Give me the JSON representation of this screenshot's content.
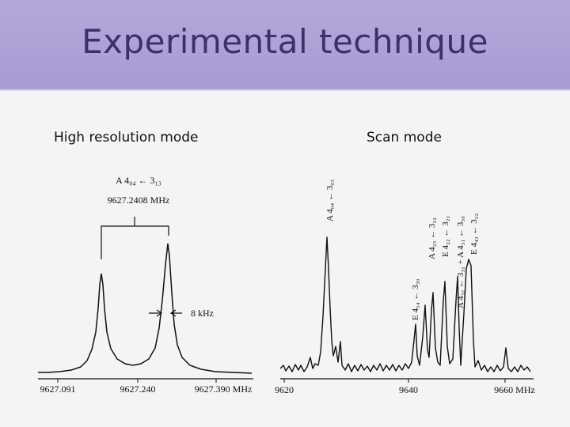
{
  "slide": {
    "title": "Experimental technique",
    "left_heading": "High resolution mode",
    "right_heading": "Scan mode"
  },
  "high_res_panel": {
    "transition_label": "A 4₀₄ ← 3₁₃",
    "frequency_label": "9627.2408 MHz",
    "splitting_label": "8 kHz",
    "x_ticks": [
      "9627.091",
      "9627.240",
      "9627.390 MHz"
    ]
  },
  "scan_panel": {
    "peak_labels": [
      "A 4₀₄ ← 3₀₃",
      "E 4₁₄ ← 3₃₀",
      "A 4₂₃ ← 3₂₂",
      "E 4₂₂ ← 3₂₁",
      "A 4₃₂ ← 3₃₁ + A 4₃₁ ← 3₃₀",
      "E 4₄₃ ← 3₂₂"
    ],
    "x_ticks": [
      "9620",
      "9640",
      "9660 MHz"
    ]
  }
}
